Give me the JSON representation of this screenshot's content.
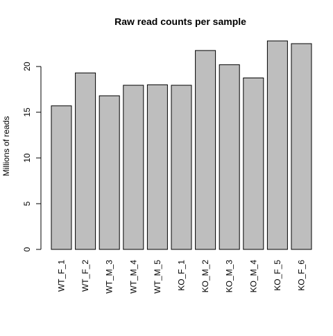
{
  "chart_data": {
    "type": "bar",
    "title": "Raw read counts per sample",
    "xlabel": "",
    "ylabel": "Millions of reads",
    "categories": [
      "WT_F_1",
      "WT_F_2",
      "WT_M_3",
      "WT_M_4",
      "WT_M_5",
      "KO_F_1",
      "KO_M_2",
      "KO_M_3",
      "KO_M_4",
      "KO_F_5",
      "KO_F_6"
    ],
    "values": [
      15.7,
      19.3,
      16.8,
      17.95,
      18.0,
      17.95,
      21.75,
      20.2,
      18.75,
      22.8,
      22.5
    ],
    "ylim": [
      0,
      23.5
    ],
    "yticks": [
      0,
      5,
      10,
      15,
      20
    ],
    "grid": false,
    "colors": {
      "bar_fill": "#bebebe",
      "bar_stroke": "#000000",
      "background": "#ffffff"
    }
  }
}
